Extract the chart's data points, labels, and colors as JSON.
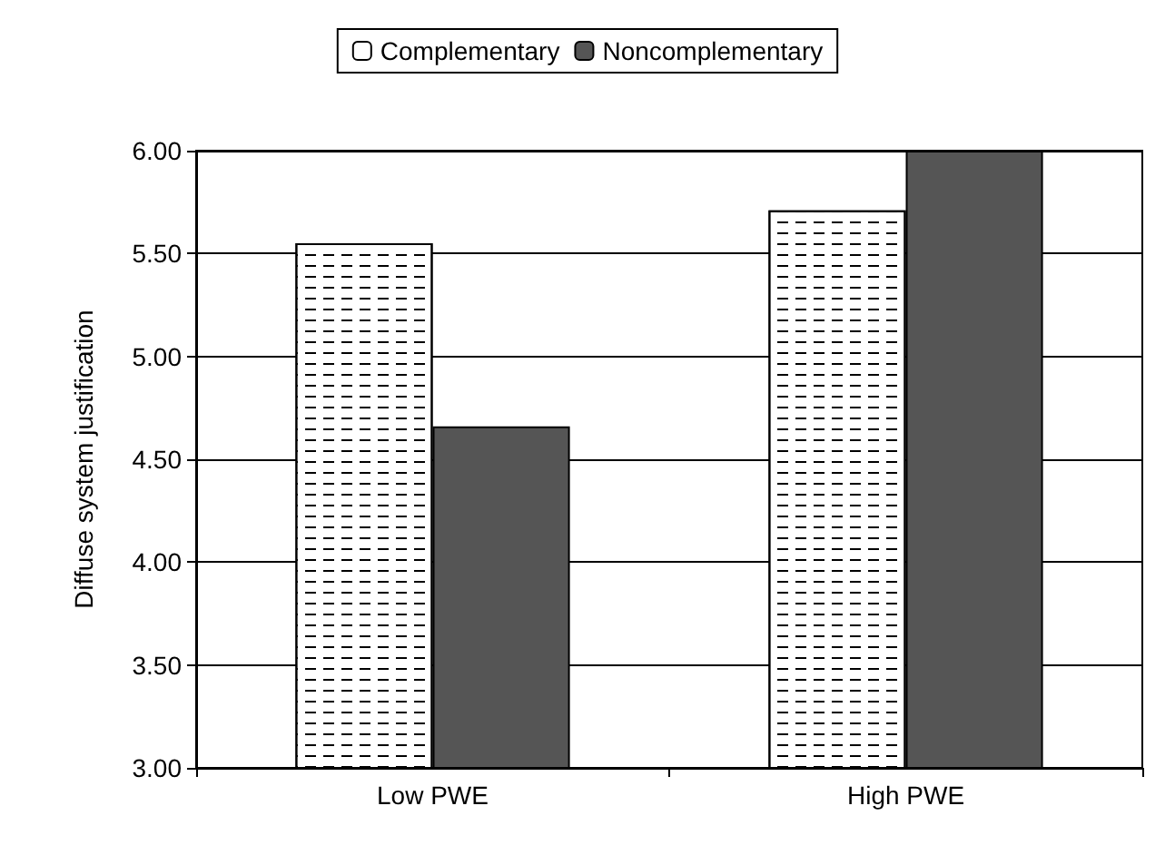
{
  "chart_data": {
    "type": "bar",
    "ylabel": "Diffuse system justification",
    "categories": [
      "Low PWE",
      "High PWE"
    ],
    "series": [
      {
        "name": "Complementary",
        "color": "#ffffff",
        "values": [
          5.55,
          5.71
        ]
      },
      {
        "name": "Noncomplementary",
        "color": "#555555",
        "values": [
          4.66,
          6.0
        ]
      }
    ],
    "ylim": [
      3,
      6
    ],
    "yticks": [
      {
        "value": 3,
        "label": "3.00"
      },
      {
        "value": 3.5,
        "label": "3.50"
      },
      {
        "value": 4,
        "label": "4.00"
      },
      {
        "value": 4.5,
        "label": "4.50"
      },
      {
        "value": 5,
        "label": "5.00"
      },
      {
        "value": 5.5,
        "label": "5.50"
      },
      {
        "value": 6,
        "label": "6.00"
      }
    ],
    "grid": "y",
    "legend": "top"
  }
}
